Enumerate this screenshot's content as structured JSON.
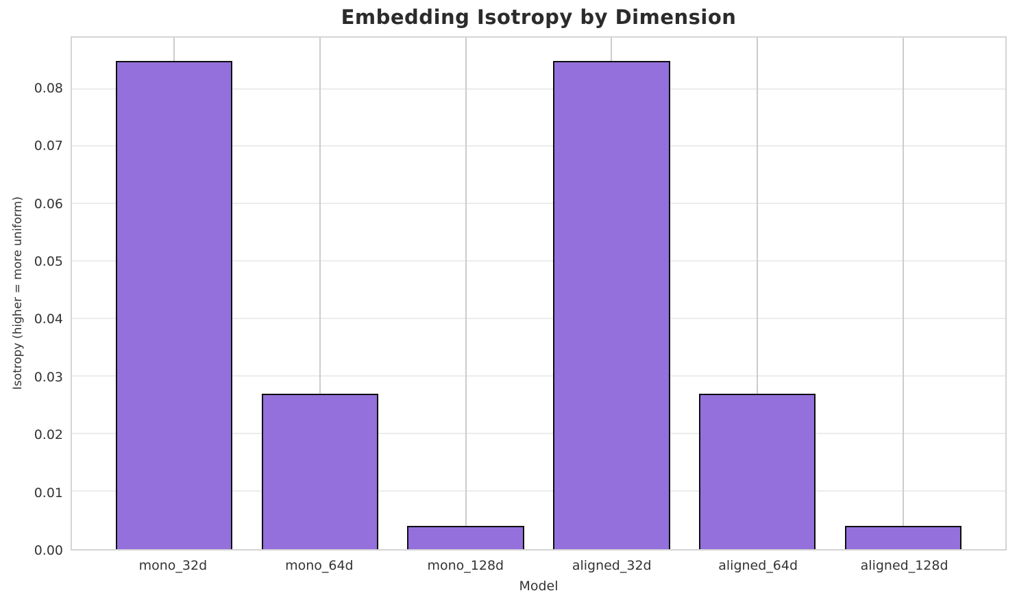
{
  "chart_data": {
    "type": "bar",
    "title": "Embedding Isotropy by Dimension",
    "xlabel": "Model",
    "ylabel": "Isotropy (higher = more uniform)",
    "categories": [
      "mono_32d",
      "mono_64d",
      "mono_128d",
      "aligned_32d",
      "aligned_64d",
      "aligned_128d"
    ],
    "values": [
      0.085,
      0.027,
      0.004,
      0.085,
      0.027,
      0.004
    ],
    "ytick_values": [
      0.0,
      0.01,
      0.02,
      0.03,
      0.04,
      0.05,
      0.06,
      0.07,
      0.08
    ],
    "ytick_labels": [
      "0.00",
      "0.01",
      "0.02",
      "0.03",
      "0.04",
      "0.05",
      "0.06",
      "0.07",
      "0.08"
    ],
    "ylim": [
      0,
      0.089
    ],
    "xlim_pad": 0.7,
    "bar_width": 0.8,
    "grid": true,
    "legend_position": "none",
    "colors": {
      "bar_fill": "#9370db",
      "bar_edge": "#0d0d0d",
      "grid_horizontal": "#ececec",
      "grid_vertical": "#cccccc",
      "spine": "#d4d4d4",
      "title_text": "#2b2b2b",
      "tick_text": "#333333",
      "background": "#ffffff"
    }
  }
}
